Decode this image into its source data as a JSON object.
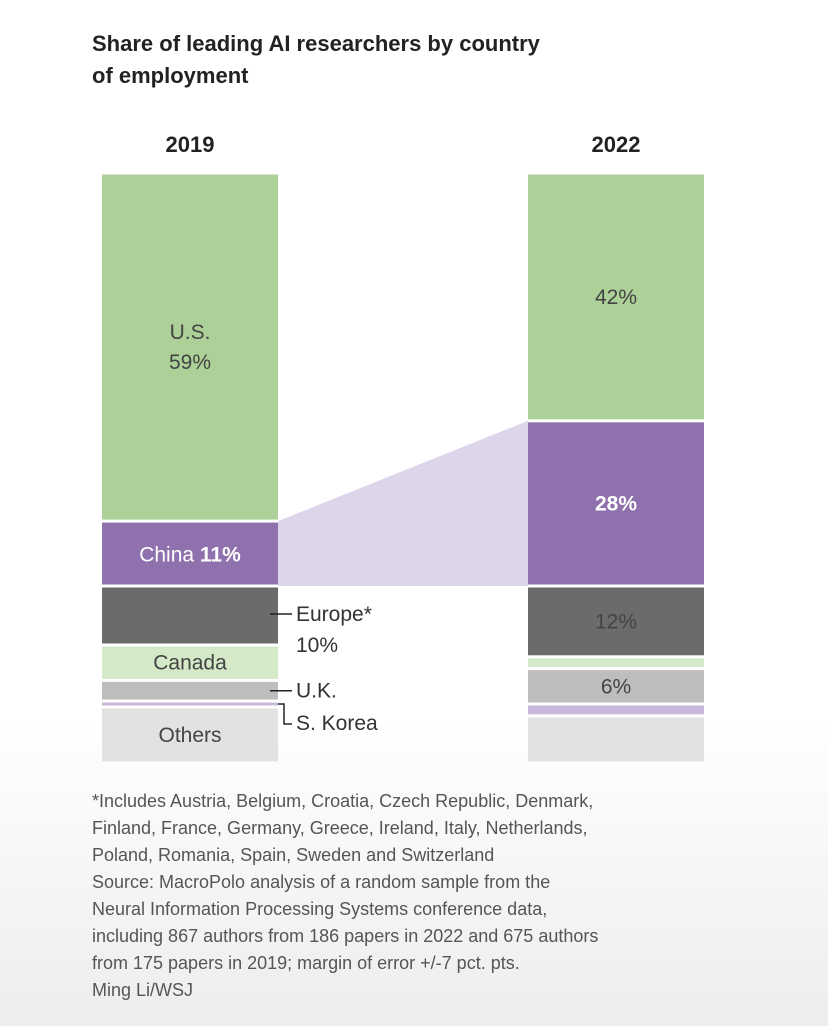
{
  "title_lines": [
    "Share of leading AI researchers by country",
    "of employment"
  ],
  "chart_data": {
    "type": "stacked-bar",
    "categories": [
      "2019",
      "2022"
    ],
    "series": [
      {
        "name": "U.S.",
        "values": [
          59,
          42
        ],
        "color": "#acd097"
      },
      {
        "name": "China",
        "values": [
          11,
          28
        ],
        "color": "#8f71ad"
      },
      {
        "name": "Europe*",
        "values": [
          10,
          12
        ],
        "color": "#6b6b6b"
      },
      {
        "name": "Canada",
        "values": [
          6,
          2
        ],
        "color": "#d4e9c7"
      },
      {
        "name": "U.K.",
        "values": [
          3.5,
          6
        ],
        "color": "#bdbdbd"
      },
      {
        "name": "S. Korea",
        "values": [
          1,
          2
        ],
        "color": "#c8b6dc"
      },
      {
        "name": "Others",
        "values": [
          9.5,
          8
        ],
        "color": "#e2e2e2"
      }
    ],
    "segment_labels": {
      "2019": {
        "U.S.": [
          "U.S.",
          "59%"
        ],
        "China": [
          "China ",
          "11%"
        ],
        "Canada": [
          "Canada"
        ],
        "Others": [
          "Others"
        ]
      },
      "2022": {
        "U.S.": [
          "42%"
        ],
        "China": [
          "28%"
        ],
        "Europe*": [
          "12%"
        ],
        "U.K.": [
          "6%"
        ]
      }
    },
    "annotations": [
      {
        "series": "Europe*",
        "lines": [
          "Europe*",
          "10%"
        ]
      },
      {
        "series": "U.K.",
        "lines": [
          "U.K."
        ]
      },
      {
        "series": "S. Korea",
        "lines": [
          "S. Korea"
        ]
      }
    ],
    "connector_series": "China",
    "connector_color": "#ddd5ea"
  },
  "footnote_lines": [
    "*Includes Austria, Belgium, Croatia, Czech Republic, Denmark,",
    "Finland, France, Germany, Greece, Ireland, Italy, Netherlands,",
    "Poland, Romania, Spain, Sweden and Switzerland",
    "Source: MacroPolo analysis of a random sample from the",
    "Neural Information Processing Systems conference data,",
    "including 867 authors from 186 papers in 2022 and 675 authors",
    "from 175 papers in 2019; margin of error +/-7 pct. pts.",
    "Ming Li/WSJ"
  ]
}
